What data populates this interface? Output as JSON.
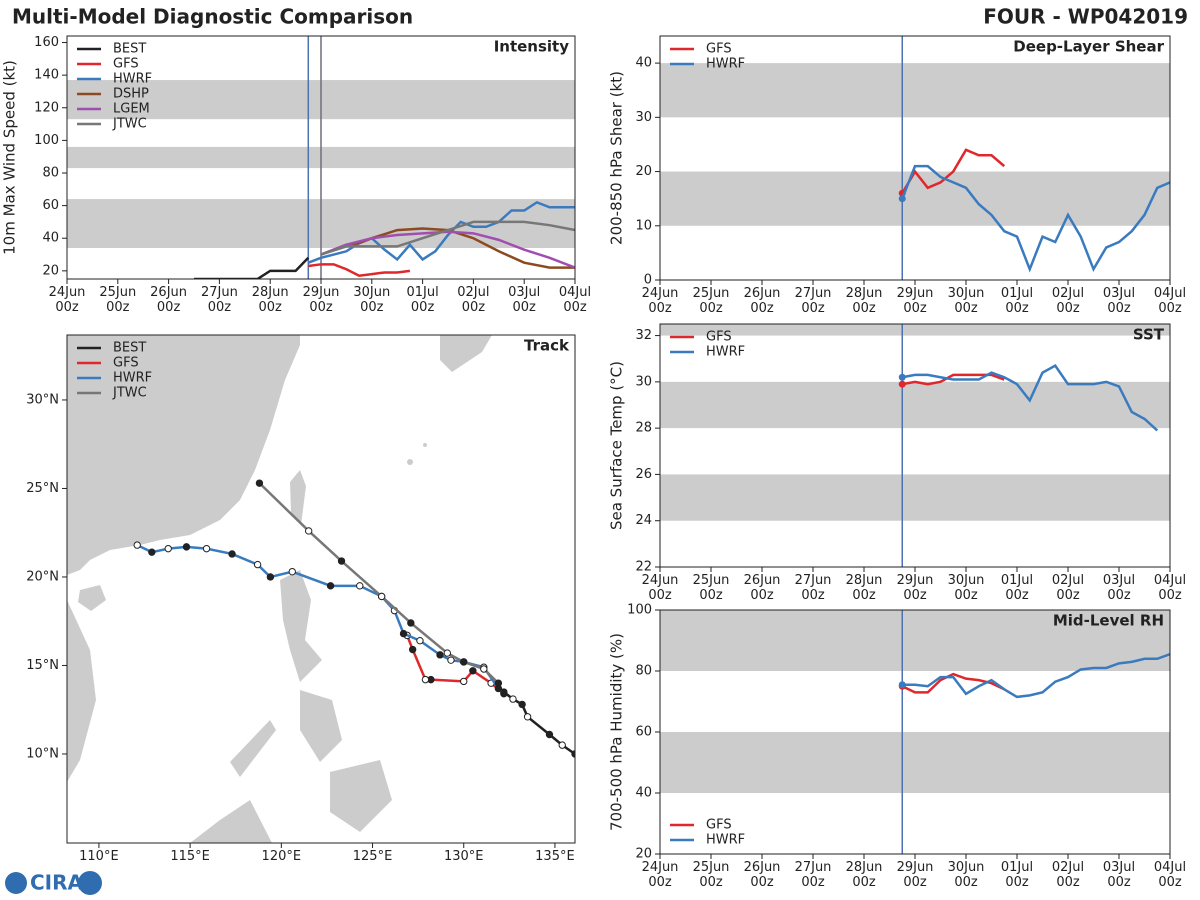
{
  "header": {
    "title": "Multi-Model Diagnostic Comparison",
    "storm": "FOUR - WP042019",
    "logo": "CIRA"
  },
  "chart_data": [
    {
      "type": "line",
      "title": "Intensity",
      "ylabel": "10m Max Wind Speed (kt)",
      "xlim": [
        0,
        10
      ],
      "ylim": [
        15,
        164
      ],
      "xticks": [
        {
          "value": 0,
          "label": "24Jun 00z"
        },
        {
          "value": 1,
          "label": "25Jun 00z"
        },
        {
          "value": 2,
          "label": "26Jun 00z"
        },
        {
          "value": 3,
          "label": "27Jun 00z"
        },
        {
          "value": 4,
          "label": "28Jun 00z"
        },
        {
          "value": 5,
          "label": "29Jun 00z"
        },
        {
          "value": 6,
          "label": "30Jun 00z"
        },
        {
          "value": 7,
          "label": "01Jul 00z"
        },
        {
          "value": 8,
          "label": "02Jul 00z"
        },
        {
          "value": 9,
          "label": "03Jul 00z"
        },
        {
          "value": 10,
          "label": "04Jul 00z"
        }
      ],
      "yticks": [
        20,
        40,
        60,
        80,
        100,
        120,
        140,
        160
      ],
      "bands": [
        [
          34,
          64
        ],
        [
          83,
          96
        ],
        [
          113,
          137
        ]
      ],
      "band_color": "#cccccc",
      "vlines": [
        {
          "value": 4.75,
          "color": "#4c72b0"
        },
        {
          "value": 5,
          "color": "#6e6e7e"
        }
      ],
      "legend": "upper left",
      "series": [
        {
          "name": "BEST",
          "color": "#222222",
          "x": [
            2.5,
            2.75,
            3,
            3.25,
            3.5,
            3.75,
            4,
            4.25,
            4.5,
            4.75
          ],
          "values": [
            15,
            15,
            15,
            15,
            15,
            15,
            20,
            20,
            20,
            28
          ]
        },
        {
          "name": "GFS",
          "color": "#e0282c",
          "x": [
            4.75,
            5,
            5.25,
            5.5,
            5.75,
            6,
            6.25,
            6.5,
            6.75
          ],
          "values": [
            23,
            24,
            24,
            21,
            17,
            18,
            19,
            19,
            20
          ]
        },
        {
          "name": "HWRF",
          "color": "#3a7bbf",
          "x": [
            4.75,
            5,
            5.25,
            5.5,
            5.75,
            6,
            6.25,
            6.5,
            6.75,
            7,
            7.25,
            7.5,
            7.75,
            8,
            8.25,
            8.5,
            8.75,
            9,
            9.25,
            9.5,
            9.75,
            10
          ],
          "values": [
            25,
            28,
            30,
            32,
            37,
            40,
            33,
            27,
            36,
            27,
            32,
            42,
            50,
            47,
            47,
            50,
            57,
            57,
            62,
            59,
            59,
            59
          ]
        },
        {
          "name": "DSHP",
          "color": "#8c4a20",
          "x": [
            5,
            5.25,
            5.5,
            5.75,
            6,
            6.5,
            7,
            7.5,
            8,
            8.5,
            9,
            9.5,
            10
          ],
          "values": [
            30,
            33,
            36,
            37,
            40,
            45,
            46,
            45,
            40,
            32,
            25,
            22,
            22
          ]
        },
        {
          "name": "LGEM",
          "color": "#a04fb0",
          "x": [
            5,
            5.5,
            6,
            6.5,
            7,
            7.5,
            8,
            8.5,
            9,
            9.5,
            10
          ],
          "values": [
            30,
            36,
            40,
            42,
            43,
            44,
            43,
            39,
            33,
            28,
            22
          ]
        },
        {
          "name": "JTWC",
          "color": "#777777",
          "x": [
            5,
            5.5,
            6,
            6.5,
            7,
            7.5,
            8,
            8.5,
            9,
            9.5,
            10
          ],
          "values": [
            30,
            35,
            35,
            35,
            40,
            45,
            50,
            50,
            50,
            48,
            45
          ]
        }
      ]
    },
    {
      "type": "line",
      "title": "Deep-Layer Shear",
      "ylabel": "200-850 hPa Shear (kt)",
      "xlim": [
        0,
        10
      ],
      "ylim": [
        0,
        45
      ],
      "xticks": [
        {
          "value": 0,
          "label": "24Jun 00z"
        },
        {
          "value": 1,
          "label": "25Jun 00z"
        },
        {
          "value": 2,
          "label": "26Jun 00z"
        },
        {
          "value": 3,
          "label": "27Jun 00z"
        },
        {
          "value": 4,
          "label": "28Jun 00z"
        },
        {
          "value": 5,
          "label": "29Jun 00z"
        },
        {
          "value": 6,
          "label": "30Jun 00z"
        },
        {
          "value": 7,
          "label": "01Jul 00z"
        },
        {
          "value": 8,
          "label": "02Jul 00z"
        },
        {
          "value": 9,
          "label": "03Jul 00z"
        },
        {
          "value": 10,
          "label": "04Jul 00z"
        }
      ],
      "yticks": [
        0,
        10,
        20,
        30,
        40
      ],
      "bands": [
        [
          10,
          20
        ],
        [
          30,
          40
        ]
      ],
      "band_color": "#cccccc",
      "vlines": [
        {
          "value": 4.75,
          "color": "#4c72b0"
        }
      ],
      "legend": "upper left",
      "markers": "start",
      "series": [
        {
          "name": "GFS",
          "color": "#e0282c",
          "x": [
            4.75,
            5,
            5.25,
            5.5,
            5.75,
            6,
            6.25,
            6.5,
            6.75
          ],
          "values": [
            16,
            20,
            17,
            18,
            20,
            24,
            23,
            23,
            21
          ]
        },
        {
          "name": "HWRF",
          "color": "#3a7bbf",
          "x": [
            4.75,
            5,
            5.25,
            5.5,
            5.75,
            6,
            6.25,
            6.5,
            6.75,
            7,
            7.25,
            7.5,
            7.75,
            8,
            8.25,
            8.5,
            8.75,
            9,
            9.25,
            9.5,
            9.75,
            10
          ],
          "values": [
            15,
            21,
            21,
            19,
            18,
            17,
            14,
            12,
            9,
            8,
            2,
            8,
            7,
            12,
            8,
            2,
            6,
            7,
            9,
            12,
            17,
            18
          ]
        }
      ]
    },
    {
      "type": "line",
      "title": "SST",
      "ylabel": "Sea Surface Temp (°C)",
      "xlim": [
        0,
        10
      ],
      "ylim": [
        22,
        32.5
      ],
      "xticks": [
        {
          "value": 0,
          "label": "24Jun 00z"
        },
        {
          "value": 1,
          "label": "25Jun 00z"
        },
        {
          "value": 2,
          "label": "26Jun 00z"
        },
        {
          "value": 3,
          "label": "27Jun 00z"
        },
        {
          "value": 4,
          "label": "28Jun 00z"
        },
        {
          "value": 5,
          "label": "29Jun 00z"
        },
        {
          "value": 6,
          "label": "30Jun 00z"
        },
        {
          "value": 7,
          "label": "01Jul 00z"
        },
        {
          "value": 8,
          "label": "02Jul 00z"
        },
        {
          "value": 9,
          "label": "03Jul 00z"
        },
        {
          "value": 10,
          "label": "04Jul 00z"
        }
      ],
      "yticks": [
        22,
        24,
        26,
        28,
        30,
        32
      ],
      "bands": [
        [
          24,
          26
        ],
        [
          28,
          30
        ],
        [
          32,
          34
        ]
      ],
      "band_color": "#cccccc",
      "vlines": [
        {
          "value": 4.75,
          "color": "#4c72b0"
        }
      ],
      "legend": "upper left",
      "markers": "start",
      "series": [
        {
          "name": "GFS",
          "color": "#e0282c",
          "x": [
            4.75,
            5,
            5.25,
            5.5,
            5.75,
            6,
            6.25,
            6.5,
            6.75
          ],
          "values": [
            29.9,
            30.0,
            29.9,
            30.0,
            30.3,
            30.3,
            30.3,
            30.3,
            30.1
          ]
        },
        {
          "name": "HWRF",
          "color": "#3a7bbf",
          "x": [
            4.75,
            5,
            5.25,
            5.5,
            5.75,
            6,
            6.25,
            6.5,
            6.75,
            7,
            7.25,
            7.5,
            7.75,
            8,
            8.25,
            8.5,
            8.75,
            9,
            9.25,
            9.5,
            9.75
          ],
          "values": [
            30.2,
            30.3,
            30.3,
            30.2,
            30.1,
            30.1,
            30.1,
            30.4,
            30.2,
            29.9,
            29.2,
            30.4,
            30.7,
            29.9,
            29.9,
            29.9,
            30.0,
            29.8,
            28.7,
            28.4,
            27.9
          ]
        }
      ]
    },
    {
      "type": "line",
      "title": "Mid-Level RH",
      "ylabel": "700-500 hPa Humidity (%)",
      "xlim": [
        0,
        10
      ],
      "ylim": [
        20,
        100
      ],
      "xticks": [
        {
          "value": 0,
          "label": "24Jun 00z"
        },
        {
          "value": 1,
          "label": "25Jun 00z"
        },
        {
          "value": 2,
          "label": "26Jun 00z"
        },
        {
          "value": 3,
          "label": "27Jun 00z"
        },
        {
          "value": 4,
          "label": "28Jun 00z"
        },
        {
          "value": 5,
          "label": "29Jun 00z"
        },
        {
          "value": 6,
          "label": "30Jun 00z"
        },
        {
          "value": 7,
          "label": "01Jul 00z"
        },
        {
          "value": 8,
          "label": "02Jul 00z"
        },
        {
          "value": 9,
          "label": "03Jul 00z"
        },
        {
          "value": 10,
          "label": "04Jul 00z"
        }
      ],
      "yticks": [
        20,
        40,
        60,
        80,
        100
      ],
      "bands": [
        [
          40,
          60
        ],
        [
          80,
          100
        ]
      ],
      "band_color": "#cccccc",
      "vlines": [
        {
          "value": 4.75,
          "color": "#4c72b0"
        }
      ],
      "legend": "lower left",
      "markers": "start",
      "series": [
        {
          "name": "GFS",
          "color": "#e0282c",
          "x": [
            4.75,
            5,
            5.25,
            5.5,
            5.75,
            6,
            6.25,
            6.5,
            6.75
          ],
          "values": [
            75,
            73,
            73,
            77,
            79,
            77.5,
            77,
            76,
            74
          ]
        },
        {
          "name": "HWRF",
          "color": "#3a7bbf",
          "x": [
            4.75,
            5,
            5.25,
            5.5,
            5.75,
            6,
            6.25,
            6.5,
            6.75,
            7,
            7.25,
            7.5,
            7.75,
            8,
            8.25,
            8.5,
            8.75,
            9,
            9.25,
            9.5,
            9.75,
            10
          ],
          "values": [
            75.5,
            75.5,
            75,
            78,
            78,
            72.5,
            75,
            77,
            74,
            71.5,
            72,
            73,
            76.5,
            78,
            80.5,
            81,
            81,
            82.5,
            83,
            84,
            84,
            85.5
          ]
        }
      ]
    },
    {
      "type": "map",
      "title": "Track",
      "xlim": [
        108.25,
        136.1
      ],
      "ylim": [
        4.97,
        33.67
      ],
      "xticks": [
        {
          "value": 110,
          "label": "110°E"
        },
        {
          "value": 115,
          "label": "115°E"
        },
        {
          "value": 120,
          "label": "120°E"
        },
        {
          "value": 125,
          "label": "125°E"
        },
        {
          "value": 130,
          "label": "130°E"
        },
        {
          "value": 135,
          "label": "135°E"
        }
      ],
      "yticks": [
        {
          "value": 10,
          "label": "10°N"
        },
        {
          "value": 15,
          "label": "15°N"
        },
        {
          "value": 20,
          "label": "20°N"
        },
        {
          "value": 25,
          "label": "25°N"
        },
        {
          "value": 30,
          "label": "30°N"
        }
      ],
      "legend": "upper left",
      "markers": "all",
      "series": [
        {
          "name": "BEST",
          "color": "#222222",
          "x": [
            136.1,
            135.4,
            134.7,
            133.5,
            133.2,
            132.7,
            132.2
          ],
          "values": [
            10.0,
            10.5,
            11.1,
            12.1,
            12.8,
            13.1,
            13.5
          ]
        },
        {
          "name": "GFS",
          "color": "#e0282c",
          "x": [
            132.2,
            131.5,
            130.5,
            130.0,
            128.2,
            127.9,
            127.2,
            126.9
          ],
          "values": [
            13.4,
            14.0,
            14.7,
            14.1,
            14.2,
            14.2,
            15.9,
            16.7
          ]
        },
        {
          "name": "HWRF",
          "color": "#3a7bbf",
          "x": [
            131.9,
            131.1,
            130.0,
            129.3,
            128.7,
            127.6,
            126.7,
            126.2,
            125.5,
            124.3,
            122.7,
            120.6,
            119.4,
            118.7,
            117.3,
            115.9,
            114.8,
            113.8,
            112.9,
            112.1
          ],
          "values": [
            13.7,
            14.9,
            15.2,
            15.3,
            15.6,
            16.4,
            16.8,
            18.1,
            18.9,
            19.5,
            19.5,
            20.3,
            20.0,
            20.7,
            21.3,
            21.6,
            21.7,
            21.6,
            21.4,
            21.8
          ]
        },
        {
          "name": "JTWC",
          "color": "#777777",
          "x": [
            131.9,
            131.1,
            130.0,
            129.1,
            127.1,
            125.5,
            123.3,
            121.5,
            118.8
          ],
          "values": [
            14.0,
            14.8,
            15.2,
            15.7,
            17.4,
            18.9,
            20.9,
            22.6,
            25.3
          ]
        }
      ]
    }
  ]
}
